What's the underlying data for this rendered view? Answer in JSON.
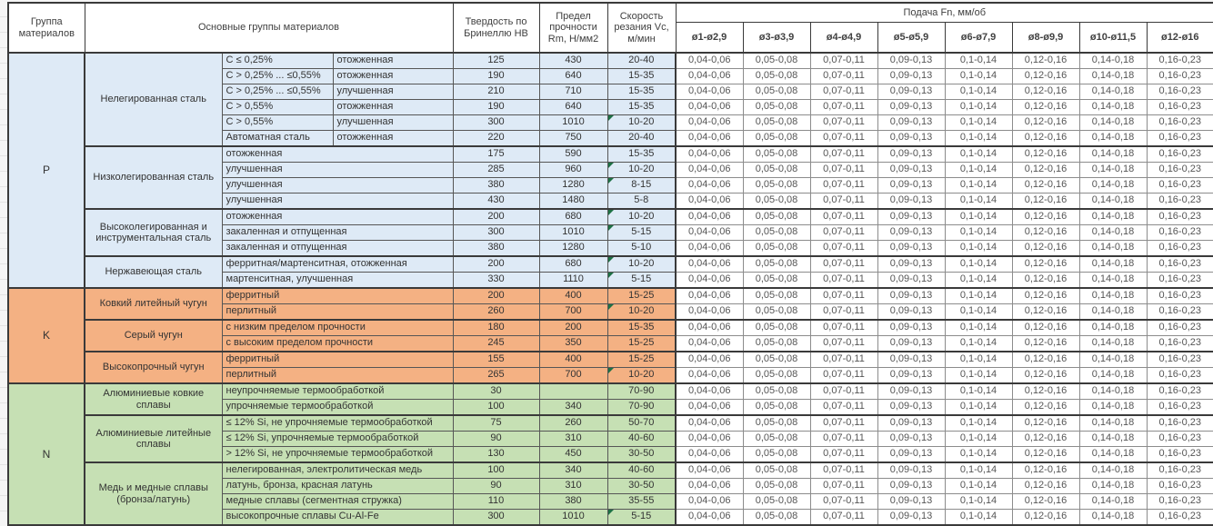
{
  "table": {
    "headers": {
      "group": "Группа материалов",
      "main_groups": "Основные группы материалов",
      "hardness": "Твердость по Бринеллю НВ",
      "strength": "Предел прочности Rm, Н/мм2",
      "speed": "Скорость резания Vc, м/мин",
      "feed": "Подача Fn, мм/об",
      "diameters": [
        "ø1-ø2,9",
        "ø3-ø3,9",
        "ø4-ø4,9",
        "ø5-ø5,9",
        "ø6-ø7,9",
        "ø8-ø9,9",
        "ø10-ø11,5",
        "ø12-ø16"
      ]
    },
    "feed_values": [
      "0,04-0,06",
      "0,05-0,08",
      "0,07-0,11",
      "0,09-0,13",
      "0,1-0,14",
      "0,12-0,16",
      "0,14-0,18",
      "0,16-0,23"
    ],
    "sections": [
      {
        "group": "P",
        "color": "#deeaf6",
        "material_groups": [
          {
            "name": "Нелегированная сталь",
            "rows": [
              {
                "condition": "C ≤ 0,25%",
                "state": "отожженная",
                "hb": "125",
                "rm": "430",
                "vc": "20-40",
                "flag": false
              },
              {
                "condition": "C > 0,25% ... ≤0,55%",
                "state": "отожженная",
                "hb": "190",
                "rm": "640",
                "vc": "15-35",
                "flag": false
              },
              {
                "condition": "C > 0,25% ... ≤0,55%",
                "state": "улучшенная",
                "hb": "210",
                "rm": "710",
                "vc": "15-35",
                "flag": false
              },
              {
                "condition": "C > 0,55%",
                "state": "отожженная",
                "hb": "190",
                "rm": "640",
                "vc": "15-35",
                "flag": false
              },
              {
                "condition": "C > 0,55%",
                "state": "улучшенная",
                "hb": "300",
                "rm": "1010",
                "vc": "10-20",
                "flag": true
              },
              {
                "condition": "Автоматная сталь",
                "state": "отожженная",
                "hb": "220",
                "rm": "750",
                "vc": "20-40",
                "flag": false
              }
            ]
          },
          {
            "name": "Низколегированная сталь",
            "rows": [
              {
                "condition": "отожженная",
                "hb": "175",
                "rm": "590",
                "vc": "15-35",
                "flag": false
              },
              {
                "condition": "улучшенная",
                "hb": "285",
                "rm": "960",
                "vc": "10-20",
                "flag": true
              },
              {
                "condition": "улучшенная",
                "hb": "380",
                "rm": "1280",
                "vc": "8-15",
                "flag": true
              },
              {
                "condition": "улучшенная",
                "hb": "430",
                "rm": "1480",
                "vc": "5-8",
                "flag": false
              }
            ]
          },
          {
            "name": "Высоколегированная и инструментальная сталь",
            "rows": [
              {
                "condition": "отожженная",
                "hb": "200",
                "rm": "680",
                "vc": "10-20",
                "flag": true
              },
              {
                "condition": "закаленная и отпущенная",
                "hb": "300",
                "rm": "1010",
                "vc": "5-15",
                "flag": true
              },
              {
                "condition": "закаленная и отпущенная",
                "hb": "380",
                "rm": "1280",
                "vc": "5-10",
                "flag": false
              }
            ]
          },
          {
            "name": "Нержавеющая сталь",
            "rows": [
              {
                "condition": "ферритная/мартенситная, отожженная",
                "hb": "200",
                "rm": "680",
                "vc": "10-20",
                "flag": true
              },
              {
                "condition": "мартенситная, улучшенная",
                "hb": "330",
                "rm": "1110",
                "vc": "5-15",
                "flag": true
              }
            ]
          }
        ]
      },
      {
        "group": "K",
        "color": "#f4b183",
        "material_groups": [
          {
            "name": "Ковкий литейный чугун",
            "rows": [
              {
                "condition": "ферритный",
                "hb": "200",
                "rm": "400",
                "vc": "15-25",
                "flag": false
              },
              {
                "condition": "перлитный",
                "hb": "260",
                "rm": "700",
                "vc": "10-20",
                "flag": true
              }
            ]
          },
          {
            "name": "Серый чугун",
            "rows": [
              {
                "condition": "с низким пределом прочности",
                "hb": "180",
                "rm": "200",
                "vc": "15-35",
                "flag": false
              },
              {
                "condition": "с высоким пределом прочности",
                "hb": "245",
                "rm": "350",
                "vc": "15-25",
                "flag": false
              }
            ]
          },
          {
            "name": "Высокопрочный чугун",
            "rows": [
              {
                "condition": "ферритный",
                "hb": "155",
                "rm": "400",
                "vc": "15-25",
                "flag": false
              },
              {
                "condition": "перлитный",
                "hb": "265",
                "rm": "700",
                "vc": "10-20",
                "flag": true
              }
            ]
          }
        ]
      },
      {
        "group": "N",
        "color": "#c6e0b4",
        "material_groups": [
          {
            "name": "Алюминиевые ковкие сплавы",
            "rows": [
              {
                "condition": "неупрочняемые термообработкой",
                "hb": "30",
                "rm": "",
                "vc": "70-90",
                "flag": false
              },
              {
                "condition": "упрочняемые термообработкой",
                "hb": "100",
                "rm": "340",
                "vc": "70-90",
                "flag": false
              }
            ]
          },
          {
            "name": "Алюминиевые литейные сплавы",
            "rows": [
              {
                "condition": "≤ 12% Si, не упрочняемые термообработкой",
                "hb": "75",
                "rm": "260",
                "vc": "50-70",
                "flag": false
              },
              {
                "condition": "≤ 12% Si, упрочняемые термообработкой",
                "hb": "90",
                "rm": "310",
                "vc": "40-60",
                "flag": false
              },
              {
                "condition": "> 12% Si, не упрочняемые термообработкой",
                "hb": "130",
                "rm": "450",
                "vc": "30-50",
                "flag": false
              }
            ]
          },
          {
            "name": "Медь и медные сплавы (бронза/латунь)",
            "rows": [
              {
                "condition": "нелегированная, электролитическая медь",
                "hb": "100",
                "rm": "340",
                "vc": "40-60",
                "flag": false
              },
              {
                "condition": "латунь, бронза, красная латунь",
                "hb": "90",
                "rm": "310",
                "vc": "30-50",
                "flag": false
              },
              {
                "condition": "медные сплавы (сегментная стружка)",
                "hb": "110",
                "rm": "380",
                "vc": "35-55",
                "flag": false
              },
              {
                "condition": "высокопрочные сплавы Cu-Al-Fe",
                "hb": "300",
                "rm": "1010",
                "vc": "5-15",
                "flag": true
              }
            ]
          }
        ]
      }
    ]
  },
  "colors": {
    "section_p": "#deeaf6",
    "section_k": "#f4b183",
    "section_n": "#c6e0b4",
    "flag": "#1e7145",
    "grid": "#565656"
  }
}
